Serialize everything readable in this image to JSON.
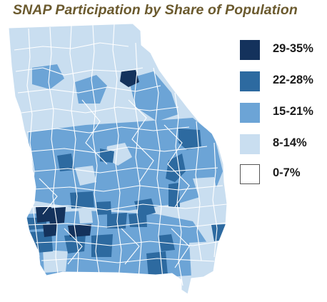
{
  "title": "SNAP Participation by Share of Population",
  "legend": {
    "items": [
      {
        "label": "29-35%",
        "color": "#14325c"
      },
      {
        "label": "22-28%",
        "color": "#2d6aa0"
      },
      {
        "label": "15-21%",
        "color": "#6ca4d6"
      },
      {
        "label": "8-14%",
        "color": "#c9def0"
      },
      {
        "label": "0-7%",
        "color": "#ffffff",
        "border": "#555555"
      }
    ]
  },
  "map": {
    "outline_color": "#ffffff",
    "region": "Georgia counties"
  }
}
